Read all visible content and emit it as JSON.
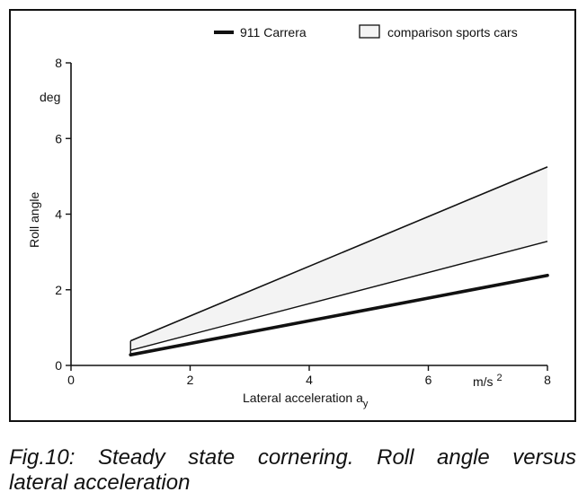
{
  "chart_data": {
    "type": "area",
    "title": "",
    "xlabel": "Lateral acceleration a",
    "xlabel_subscript": "y",
    "ylabel": "Roll angle",
    "yunit": "deg",
    "xunit": "m/s²",
    "xlim": [
      0,
      8
    ],
    "ylim": [
      0,
      8
    ],
    "xticks": [
      0,
      2,
      4,
      6,
      8
    ],
    "yticks": [
      0,
      2,
      4,
      6,
      8
    ],
    "legend_position": "top",
    "grid": false,
    "series": [
      {
        "name": "911 Carrera",
        "style": "thick-line",
        "x": [
          1,
          8
        ],
        "y": [
          0.28,
          2.38
        ]
      },
      {
        "name": "comparison sports cars",
        "style": "band",
        "x": [
          1,
          8
        ],
        "upper": [
          0.65,
          5.25
        ],
        "lower": [
          0.4,
          3.28
        ]
      }
    ]
  },
  "caption": {
    "line1": "Fig.10: Steady state cornering. Roll angle versus",
    "line2": "lateral acceleration"
  }
}
